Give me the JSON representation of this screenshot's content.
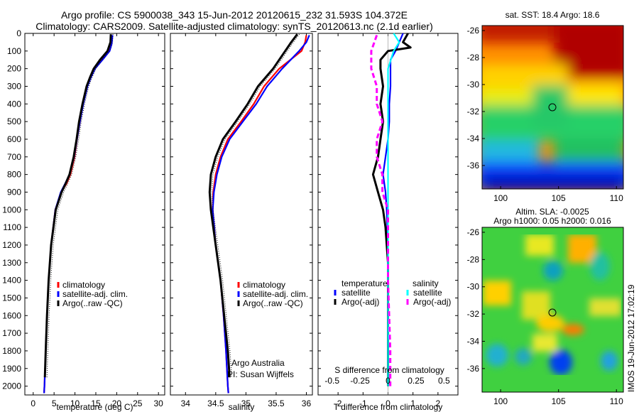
{
  "header": {
    "line1": "Argo profile: CS 5900038_343 15-Jun-2012 20120615_232 31.593S 104.372E",
    "line2": "Climatology: CARS2009. Satellite-adjusted climatology: synTS_20120613.nc (2.1d earlier)"
  },
  "depth_axis": {
    "ticks": [
      0,
      100,
      200,
      300,
      400,
      500,
      600,
      700,
      800,
      900,
      1000,
      1100,
      1200,
      1300,
      1400,
      1500,
      1600,
      1700,
      1800,
      1900,
      2000
    ]
  },
  "colors": {
    "climatology": "#ff0000",
    "satellite": "#0000ff",
    "argo": "#000000",
    "satellite_salinity": "#00ffff",
    "argo_salinity": "#ff00ff"
  },
  "chart_data": [
    {
      "type": "line",
      "xlabel": "temperature (deg C)",
      "xticks": [
        0,
        5,
        10,
        15,
        20,
        25,
        30
      ],
      "xlim": [
        -2,
        31.5
      ],
      "ylim": [
        2050,
        0
      ],
      "legend": {
        "placement": "center",
        "entries": [
          "climatology",
          "satellite-adj. clim.",
          "Argo(..raw -QC)"
        ]
      },
      "series": [
        {
          "name": "climatology",
          "depth": [
            10,
            60,
            100,
            150,
            200,
            250,
            300,
            400,
            500,
            600,
            700,
            800,
            850,
            900,
            1000,
            1200,
            1400,
            1600,
            1800,
            2000,
            2040
          ],
          "values": [
            18.7,
            18.6,
            18.0,
            16.3,
            14.6,
            13.6,
            12.9,
            11.9,
            11.2,
            10.5,
            9.9,
            8.9,
            8.0,
            6.7,
            5.3,
            4.3,
            3.7,
            3.3,
            3.0,
            2.7,
            2.6
          ]
        },
        {
          "name": "satellite-adj. clim.",
          "depth": [
            10,
            60,
            100,
            150,
            200,
            250,
            300,
            400,
            500,
            600,
            700,
            800,
            850,
            900,
            1000,
            1200,
            1400,
            1600,
            1800,
            2000,
            2040
          ],
          "values": [
            19.0,
            18.8,
            18.3,
            16.6,
            14.8,
            13.8,
            13.0,
            12.0,
            11.2,
            10.5,
            9.8,
            8.7,
            7.7,
            6.6,
            5.3,
            4.3,
            3.7,
            3.3,
            3.0,
            2.7,
            2.6
          ]
        },
        {
          "name": "Argo(..raw -QC)",
          "depth": [
            5,
            50,
            100,
            150,
            200,
            250,
            300,
            400,
            500,
            600,
            700,
            800,
            850,
            900,
            1000,
            1200,
            1400,
            1600,
            1800,
            1950
          ],
          "values": [
            18.6,
            18.5,
            17.8,
            16.0,
            14.5,
            13.6,
            12.8,
            11.8,
            11.0,
            10.4,
            9.7,
            8.7,
            7.8,
            6.8,
            5.4,
            4.3,
            3.7,
            3.3,
            3.0,
            2.8
          ]
        }
      ]
    },
    {
      "type": "line",
      "xlabel": "salinity",
      "xticks": [
        34,
        34.5,
        35,
        35.5,
        36
      ],
      "xlim": [
        33.75,
        36.1
      ],
      "ylim": [
        2050,
        0
      ],
      "legend": {
        "placement": "bottom-right",
        "entries": [
          "climatology",
          "satellite-adj. clim.",
          "Argo(..raw -QC)"
        ]
      },
      "annotation": [
        "Argo Australia",
        "PI: Susan Wijffels"
      ],
      "series": [
        {
          "name": "climatology",
          "depth": [
            10,
            50,
            100,
            200,
            300,
            400,
            500,
            600,
            700,
            800,
            900,
            1000,
            1200,
            1400,
            1600,
            1800,
            2000,
            2040
          ],
          "values": [
            36.0,
            35.98,
            35.92,
            35.55,
            35.3,
            35.13,
            34.92,
            34.7,
            34.58,
            34.5,
            34.46,
            34.45,
            34.5,
            34.58,
            34.63,
            34.67,
            34.7,
            34.71
          ]
        },
        {
          "name": "satellite-adj. clim.",
          "depth": [
            10,
            50,
            100,
            200,
            300,
            400,
            500,
            600,
            700,
            800,
            900,
            1000,
            1200,
            1400,
            1600,
            1800,
            2000,
            2040
          ],
          "values": [
            36.05,
            36.0,
            35.88,
            35.6,
            35.35,
            35.17,
            34.95,
            34.73,
            34.6,
            34.52,
            34.47,
            34.45,
            34.5,
            34.58,
            34.63,
            34.67,
            34.7,
            34.71
          ]
        },
        {
          "name": "Argo(..raw -QC)",
          "depth": [
            5,
            50,
            100,
            200,
            300,
            400,
            500,
            600,
            700,
            800,
            900,
            1000,
            1200,
            1400,
            1600,
            1800,
            1950
          ],
          "values": [
            35.85,
            35.75,
            35.65,
            35.45,
            35.2,
            35.03,
            34.83,
            34.62,
            34.5,
            34.42,
            34.4,
            34.42,
            34.5,
            34.58,
            34.64,
            34.7,
            34.73
          ]
        }
      ]
    },
    {
      "type": "line",
      "xlabel": "T difference from climatology",
      "xlabel_top": "S difference from climatology",
      "xticks": [
        -2,
        -1,
        0,
        1,
        2
      ],
      "xticks_top": [
        "-0.5",
        "-0.25",
        "0",
        "0.25",
        "0.5"
      ],
      "xlim": [
        -2.8,
        2.8
      ],
      "ylim": [
        2050,
        0
      ],
      "legend": {
        "placement": "bottom",
        "entries": [
          "temperature",
          "satellite",
          "Argo(-adj)",
          "salinity",
          "satellite",
          "Argo(-adj)"
        ]
      },
      "series": [
        {
          "name": "satellite",
          "depth": [
            0,
            100,
            150,
            200,
            300,
            400,
            500,
            600,
            700,
            800,
            900,
            1000,
            1200,
            1400,
            1600,
            1800,
            2000
          ],
          "values": [
            0.6,
            0.3,
            0.1,
            0.1,
            0.1,
            0.05,
            0.05,
            0.0,
            -0.1,
            -0.2,
            -0.1,
            -0.05,
            0.0,
            0.0,
            0.0,
            0.0,
            0.0
          ]
        },
        {
          "name": "Argo(-adj)",
          "depth": [
            0,
            50,
            80,
            100,
            150,
            200,
            300,
            400,
            500,
            600,
            700,
            800,
            900,
            1000,
            1100,
            1200,
            1300,
            1400,
            1500,
            1600,
            1800,
            2000
          ],
          "values": [
            0.8,
            0.6,
            0.9,
            0.0,
            -0.3,
            -0.3,
            -0.2,
            -0.3,
            -0.2,
            -0.3,
            -0.4,
            -0.6,
            -0.4,
            -0.2,
            -0.1,
            -0.05,
            0.0,
            0.0,
            0.0,
            0.0,
            0.0,
            0.0
          ]
        },
        {
          "name": "satellite",
          "depth": [
            0,
            50,
            100,
            200,
            300,
            400,
            500,
            600,
            700,
            800,
            900,
            1000,
            1200,
            1400,
            1600,
            1800,
            2000
          ],
          "values": [
            0.05,
            0.1,
            0.05,
            0.0,
            0.0,
            0.0,
            0.0,
            0.0,
            0.0,
            0.0,
            0.0,
            0.0,
            0.0,
            0.0,
            0.0,
            0.0,
            0.0
          ]
        },
        {
          "name": "Argo(-adj)",
          "depth": [
            10,
            100,
            200,
            300,
            400,
            500,
            600,
            700,
            800,
            900,
            1000,
            1200,
            1400,
            1600,
            1800,
            2000
          ],
          "values": [
            -0.1,
            -0.15,
            -0.15,
            -0.1,
            -0.1,
            -0.05,
            -0.1,
            -0.1,
            -0.05,
            -0.05,
            0.0,
            0.0,
            0.0,
            0.01,
            0.02,
            0.02
          ]
        }
      ]
    }
  ],
  "maps": [
    {
      "title": "sat. SST: 18.4 Argo: 18.6",
      "xticks": [
        "100",
        "105",
        "110"
      ],
      "yticks": [
        "-26",
        "-28",
        "-30",
        "-32",
        "-34",
        "-36"
      ]
    },
    {
      "title_lines": [
        "Altim. SLA: -0.0025",
        "Argo h1000: 0.05 h2000: 0.016"
      ],
      "xticks": [
        "100",
        "105",
        "110"
      ],
      "yticks": [
        "-26",
        "-28",
        "-30",
        "-32",
        "-34",
        "-36"
      ]
    }
  ],
  "stamp": "IMOS 19-Jun-2012 17:02:19"
}
